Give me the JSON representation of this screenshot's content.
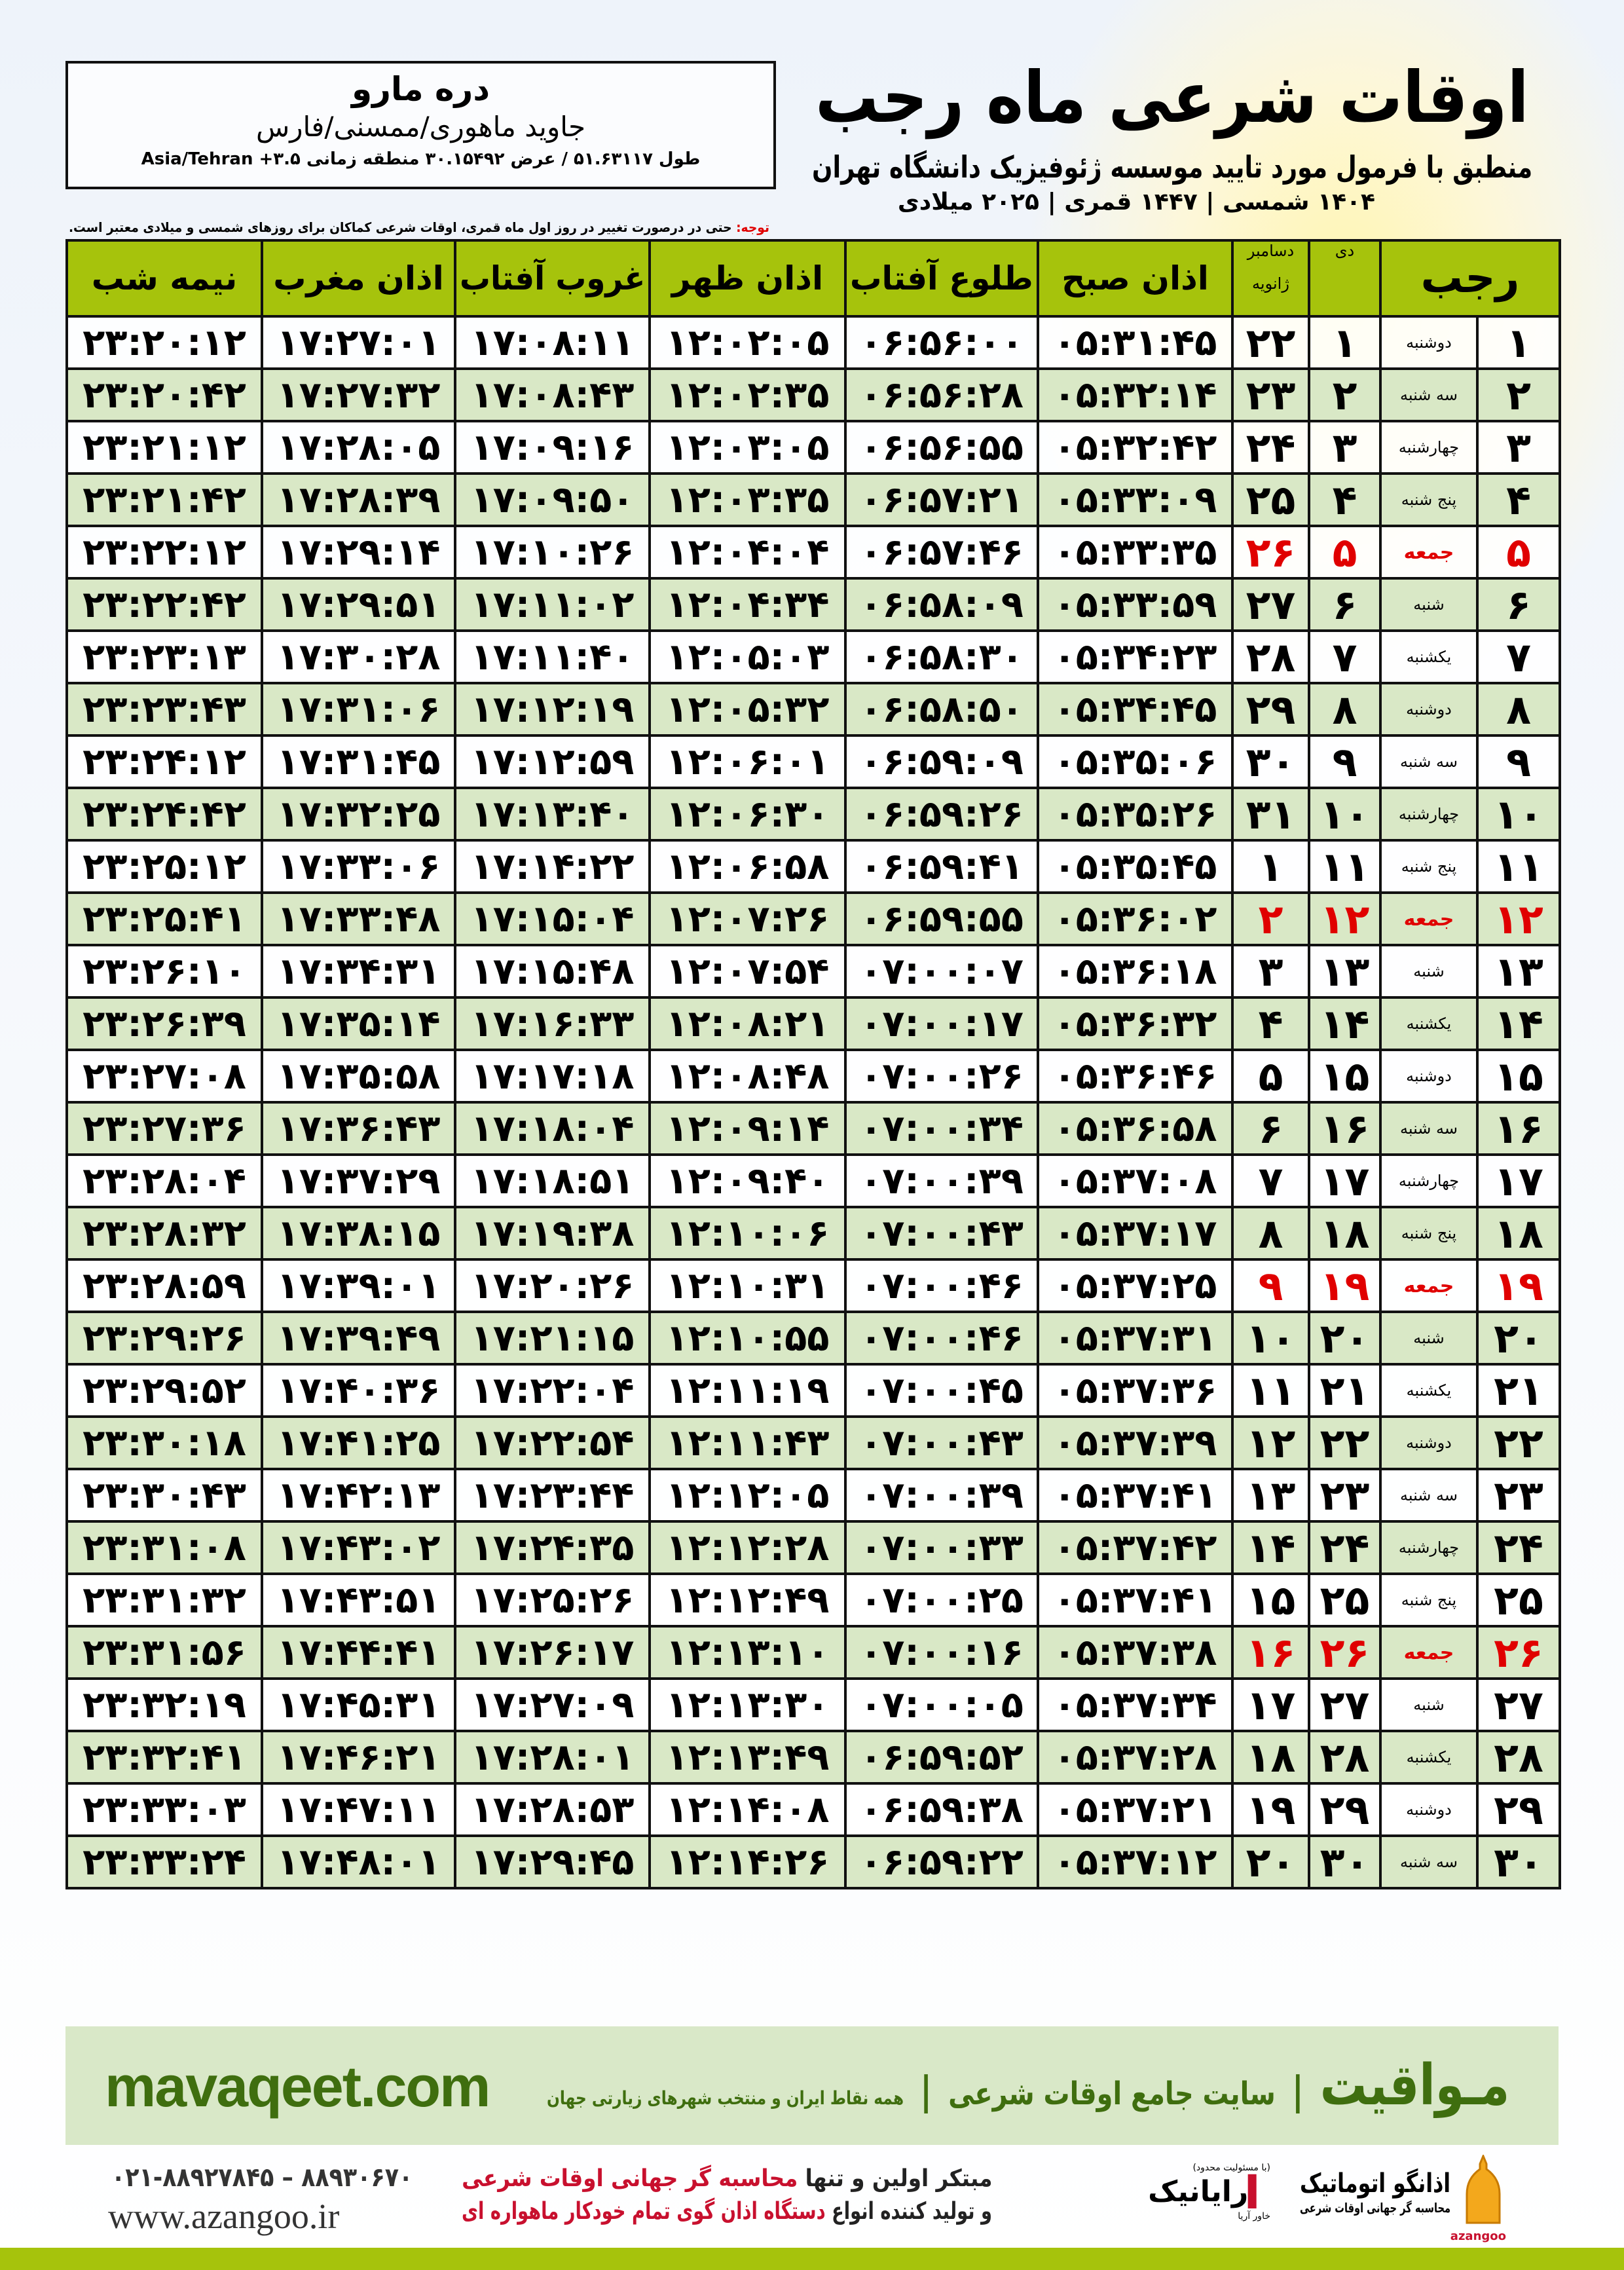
{
  "header": {
    "title": "اوقات شرعی ماه رجب",
    "subtitle": "منطبق با فرمول مورد تایید موسسه ژئوفیزیک دانشگاه تهران",
    "dates": "۱۴۰۴ شمسی | ۱۴۴۷ قمری | ۲۰۲۵ میلادی",
    "note_label": "توجه:",
    "note_text": " حتی در درصورت تغییر در روز اول ماه قمری، اوقات شرعی کماکان برای روزهای شمسی و میلادی معتبر است."
  },
  "location": {
    "city": "دره مارو",
    "province": "جاوید ماهوری/ممسنی/فارس",
    "coords": "طول ۵۱.۶۳۱۱۷ / عرض ۳۰.۱۵۴۹۲ منطقه زمانی ۳.۵+ Asia/Tehran"
  },
  "table": {
    "headers": {
      "month": "رجب",
      "dey": "دی",
      "greg_top": "دسامبر",
      "greg_bottom": "ژانویه",
      "fajr": "اذان صبح",
      "sunrise": "طلوع آفتاب",
      "dhuhr": "اذان ظهر",
      "sunset": "غروب آفتاب",
      "maghrib": "اذان مغرب",
      "midnight": "نیمه شب"
    },
    "holiday_color": "#e00000",
    "rows": [
      {
        "day": "۱",
        "weekday": "دوشنبه",
        "dey": "۱",
        "greg": "۲۲",
        "times": [
          "۰۵:۳۱:۴۵",
          "۰۶:۵۶:۰۰",
          "۱۲:۰۲:۰۵",
          "۱۷:۰۸:۱۱",
          "۱۷:۲۷:۰۱",
          "۲۳:۲۰:۱۲"
        ],
        "holiday": false
      },
      {
        "day": "۲",
        "weekday": "سه شنبه",
        "dey": "۲",
        "greg": "۲۳",
        "times": [
          "۰۵:۳۲:۱۴",
          "۰۶:۵۶:۲۸",
          "۱۲:۰۲:۳۵",
          "۱۷:۰۸:۴۳",
          "۱۷:۲۷:۳۲",
          "۲۳:۲۰:۴۲"
        ],
        "holiday": false
      },
      {
        "day": "۳",
        "weekday": "چهارشنبه",
        "dey": "۳",
        "greg": "۲۴",
        "times": [
          "۰۵:۳۲:۴۲",
          "۰۶:۵۶:۵۵",
          "۱۲:۰۳:۰۵",
          "۱۷:۰۹:۱۶",
          "۱۷:۲۸:۰۵",
          "۲۳:۲۱:۱۲"
        ],
        "holiday": false
      },
      {
        "day": "۴",
        "weekday": "پنج شنبه",
        "dey": "۴",
        "greg": "۲۵",
        "times": [
          "۰۵:۳۳:۰۹",
          "۰۶:۵۷:۲۱",
          "۱۲:۰۳:۳۵",
          "۱۷:۰۹:۵۰",
          "۱۷:۲۸:۳۹",
          "۲۳:۲۱:۴۲"
        ],
        "holiday": false
      },
      {
        "day": "۵",
        "weekday": "جمعه",
        "dey": "۵",
        "greg": "۲۶",
        "times": [
          "۰۵:۳۳:۳۵",
          "۰۶:۵۷:۴۶",
          "۱۲:۰۴:۰۴",
          "۱۷:۱۰:۲۶",
          "۱۷:۲۹:۱۴",
          "۲۳:۲۲:۱۲"
        ],
        "holiday": true
      },
      {
        "day": "۶",
        "weekday": "شنبه",
        "dey": "۶",
        "greg": "۲۷",
        "times": [
          "۰۵:۳۳:۵۹",
          "۰۶:۵۸:۰۹",
          "۱۲:۰۴:۳۴",
          "۱۷:۱۱:۰۲",
          "۱۷:۲۹:۵۱",
          "۲۳:۲۲:۴۲"
        ],
        "holiday": false
      },
      {
        "day": "۷",
        "weekday": "یکشنبه",
        "dey": "۷",
        "greg": "۲۸",
        "times": [
          "۰۵:۳۴:۲۳",
          "۰۶:۵۸:۳۰",
          "۱۲:۰۵:۰۳",
          "۱۷:۱۱:۴۰",
          "۱۷:۳۰:۲۸",
          "۲۳:۲۳:۱۳"
        ],
        "holiday": false
      },
      {
        "day": "۸",
        "weekday": "دوشنبه",
        "dey": "۸",
        "greg": "۲۹",
        "times": [
          "۰۵:۳۴:۴۵",
          "۰۶:۵۸:۵۰",
          "۱۲:۰۵:۳۲",
          "۱۷:۱۲:۱۹",
          "۱۷:۳۱:۰۶",
          "۲۳:۲۳:۴۳"
        ],
        "holiday": false
      },
      {
        "day": "۹",
        "weekday": "سه شنبه",
        "dey": "۹",
        "greg": "۳۰",
        "times": [
          "۰۵:۳۵:۰۶",
          "۰۶:۵۹:۰۹",
          "۱۲:۰۶:۰۱",
          "۱۷:۱۲:۵۹",
          "۱۷:۳۱:۴۵",
          "۲۳:۲۴:۱۲"
        ],
        "holiday": false
      },
      {
        "day": "۱۰",
        "weekday": "چهارشنبه",
        "dey": "۱۰",
        "greg": "۳۱",
        "times": [
          "۰۵:۳۵:۲۶",
          "۰۶:۵۹:۲۶",
          "۱۲:۰۶:۳۰",
          "۱۷:۱۳:۴۰",
          "۱۷:۳۲:۲۵",
          "۲۳:۲۴:۴۲"
        ],
        "holiday": false
      },
      {
        "day": "۱۱",
        "weekday": "پنج شنبه",
        "dey": "۱۱",
        "greg": "۱",
        "times": [
          "۰۵:۳۵:۴۵",
          "۰۶:۵۹:۴۱",
          "۱۲:۰۶:۵۸",
          "۱۷:۱۴:۲۲",
          "۱۷:۳۳:۰۶",
          "۲۳:۲۵:۱۲"
        ],
        "holiday": false
      },
      {
        "day": "۱۲",
        "weekday": "جمعه",
        "dey": "۱۲",
        "greg": "۲",
        "times": [
          "۰۵:۳۶:۰۲",
          "۰۶:۵۹:۵۵",
          "۱۲:۰۷:۲۶",
          "۱۷:۱۵:۰۴",
          "۱۷:۳۳:۴۸",
          "۲۳:۲۵:۴۱"
        ],
        "holiday": true
      },
      {
        "day": "۱۳",
        "weekday": "شنبه",
        "dey": "۱۳",
        "greg": "۳",
        "times": [
          "۰۵:۳۶:۱۸",
          "۰۷:۰۰:۰۷",
          "۱۲:۰۷:۵۴",
          "۱۷:۱۵:۴۸",
          "۱۷:۳۴:۳۱",
          "۲۳:۲۶:۱۰"
        ],
        "holiday": false
      },
      {
        "day": "۱۴",
        "weekday": "یکشنبه",
        "dey": "۱۴",
        "greg": "۴",
        "times": [
          "۰۵:۳۶:۳۲",
          "۰۷:۰۰:۱۷",
          "۱۲:۰۸:۲۱",
          "۱۷:۱۶:۳۳",
          "۱۷:۳۵:۱۴",
          "۲۳:۲۶:۳۹"
        ],
        "holiday": false
      },
      {
        "day": "۱۵",
        "weekday": "دوشنبه",
        "dey": "۱۵",
        "greg": "۵",
        "times": [
          "۰۵:۳۶:۴۶",
          "۰۷:۰۰:۲۶",
          "۱۲:۰۸:۴۸",
          "۱۷:۱۷:۱۸",
          "۱۷:۳۵:۵۸",
          "۲۳:۲۷:۰۸"
        ],
        "holiday": false
      },
      {
        "day": "۱۶",
        "weekday": "سه شنبه",
        "dey": "۱۶",
        "greg": "۶",
        "times": [
          "۰۵:۳۶:۵۸",
          "۰۷:۰۰:۳۴",
          "۱۲:۰۹:۱۴",
          "۱۷:۱۸:۰۴",
          "۱۷:۳۶:۴۳",
          "۲۳:۲۷:۳۶"
        ],
        "holiday": false
      },
      {
        "day": "۱۷",
        "weekday": "چهارشنبه",
        "dey": "۱۷",
        "greg": "۷",
        "times": [
          "۰۵:۳۷:۰۸",
          "۰۷:۰۰:۳۹",
          "۱۲:۰۹:۴۰",
          "۱۷:۱۸:۵۱",
          "۱۷:۳۷:۲۹",
          "۲۳:۲۸:۰۴"
        ],
        "holiday": false
      },
      {
        "day": "۱۸",
        "weekday": "پنج شنبه",
        "dey": "۱۸",
        "greg": "۸",
        "times": [
          "۰۵:۳۷:۱۷",
          "۰۷:۰۰:۴۳",
          "۱۲:۱۰:۰۶",
          "۱۷:۱۹:۳۸",
          "۱۷:۳۸:۱۵",
          "۲۳:۲۸:۳۲"
        ],
        "holiday": false
      },
      {
        "day": "۱۹",
        "weekday": "جمعه",
        "dey": "۱۹",
        "greg": "۹",
        "times": [
          "۰۵:۳۷:۲۵",
          "۰۷:۰۰:۴۶",
          "۱۲:۱۰:۳۱",
          "۱۷:۲۰:۲۶",
          "۱۷:۳۹:۰۱",
          "۲۳:۲۸:۵۹"
        ],
        "holiday": true
      },
      {
        "day": "۲۰",
        "weekday": "شنبه",
        "dey": "۲۰",
        "greg": "۱۰",
        "times": [
          "۰۵:۳۷:۳۱",
          "۰۷:۰۰:۴۶",
          "۱۲:۱۰:۵۵",
          "۱۷:۲۱:۱۵",
          "۱۷:۳۹:۴۹",
          "۲۳:۲۹:۲۶"
        ],
        "holiday": false
      },
      {
        "day": "۲۱",
        "weekday": "یکشنبه",
        "dey": "۲۱",
        "greg": "۱۱",
        "times": [
          "۰۵:۳۷:۳۶",
          "۰۷:۰۰:۴۵",
          "۱۲:۱۱:۱۹",
          "۱۷:۲۲:۰۴",
          "۱۷:۴۰:۳۶",
          "۲۳:۲۹:۵۲"
        ],
        "holiday": false
      },
      {
        "day": "۲۲",
        "weekday": "دوشنبه",
        "dey": "۲۲",
        "greg": "۱۲",
        "times": [
          "۰۵:۳۷:۳۹",
          "۰۷:۰۰:۴۳",
          "۱۲:۱۱:۴۳",
          "۱۷:۲۲:۵۴",
          "۱۷:۴۱:۲۵",
          "۲۳:۳۰:۱۸"
        ],
        "holiday": false
      },
      {
        "day": "۲۳",
        "weekday": "سه شنبه",
        "dey": "۲۳",
        "greg": "۱۳",
        "times": [
          "۰۵:۳۷:۴۱",
          "۰۷:۰۰:۳۹",
          "۱۲:۱۲:۰۵",
          "۱۷:۲۳:۴۴",
          "۱۷:۴۲:۱۳",
          "۲۳:۳۰:۴۳"
        ],
        "holiday": false
      },
      {
        "day": "۲۴",
        "weekday": "چهارشنبه",
        "dey": "۲۴",
        "greg": "۱۴",
        "times": [
          "۰۵:۳۷:۴۲",
          "۰۷:۰۰:۳۳",
          "۱۲:۱۲:۲۸",
          "۱۷:۲۴:۳۵",
          "۱۷:۴۳:۰۲",
          "۲۳:۳۱:۰۸"
        ],
        "holiday": false
      },
      {
        "day": "۲۵",
        "weekday": "پنج شنبه",
        "dey": "۲۵",
        "greg": "۱۵",
        "times": [
          "۰۵:۳۷:۴۱",
          "۰۷:۰۰:۲۵",
          "۱۲:۱۲:۴۹",
          "۱۷:۲۵:۲۶",
          "۱۷:۴۳:۵۱",
          "۲۳:۳۱:۳۲"
        ],
        "holiday": false
      },
      {
        "day": "۲۶",
        "weekday": "جمعه",
        "dey": "۲۶",
        "greg": "۱۶",
        "times": [
          "۰۵:۳۷:۳۸",
          "۰۷:۰۰:۱۶",
          "۱۲:۱۳:۱۰",
          "۱۷:۲۶:۱۷",
          "۱۷:۴۴:۴۱",
          "۲۳:۳۱:۵۶"
        ],
        "holiday": true
      },
      {
        "day": "۲۷",
        "weekday": "شنبه",
        "dey": "۲۷",
        "greg": "۱۷",
        "times": [
          "۰۵:۳۷:۳۴",
          "۰۷:۰۰:۰۵",
          "۱۲:۱۳:۳۰",
          "۱۷:۲۷:۰۹",
          "۱۷:۴۵:۳۱",
          "۲۳:۳۲:۱۹"
        ],
        "holiday": false
      },
      {
        "day": "۲۸",
        "weekday": "یکشنبه",
        "dey": "۲۸",
        "greg": "۱۸",
        "times": [
          "۰۵:۳۷:۲۸",
          "۰۶:۵۹:۵۲",
          "۱۲:۱۳:۴۹",
          "۱۷:۲۸:۰۱",
          "۱۷:۴۶:۲۱",
          "۲۳:۳۲:۴۱"
        ],
        "holiday": false
      },
      {
        "day": "۲۹",
        "weekday": "دوشنبه",
        "dey": "۲۹",
        "greg": "۱۹",
        "times": [
          "۰۵:۳۷:۲۱",
          "۰۶:۵۹:۳۸",
          "۱۲:۱۴:۰۸",
          "۱۷:۲۸:۵۳",
          "۱۷:۴۷:۱۱",
          "۲۳:۳۳:۰۳"
        ],
        "holiday": false
      },
      {
        "day": "۳۰",
        "weekday": "سه شنبه",
        "dey": "۳۰",
        "greg": "۲۰",
        "times": [
          "۰۵:۳۷:۱۲",
          "۰۶:۵۹:۲۲",
          "۱۲:۱۴:۲۶",
          "۱۷:۲۹:۴۵",
          "۱۷:۴۸:۰۱",
          "۲۳:۳۳:۲۴"
        ],
        "holiday": false
      }
    ]
  },
  "footer": {
    "brand": "مـواقیت",
    "separator": "|",
    "slogan": "سایت جامع اوقات شرعی",
    "slogan2": "همه نقاط ایران و منتخب شهرهای زیارتی جهان",
    "site": "mavaqeet.com",
    "phone": "۰۲۱-۸۸۹۲۷۸۴۵ – ۸۸۹۳۰۶۷۰",
    "www": "www.azangoo.ir",
    "promo_line1_a": "مبتکر اولین و تنها ",
    "promo_line1_b": "محاسبه گر جهانی اوقات شرعی",
    "promo_line2_a": "و تولید کننده انواع ",
    "promo_line2_b": "دستگاه اذان گوی تمام خودکار ماهواره ای",
    "rayanik_small": "(با مسئولیت محدود)",
    "rayanik": "رایانیک",
    "rayanik_sub": "خاور آریا",
    "azangoo_name": "اذانگو اتوماتیک",
    "azangoo_sub": "محاسبه گر جهانی اوقات شرعی",
    "azangoo_en": "azangoo",
    "brand_color": "#3f6e0f",
    "accent_color": "#a6c30c",
    "promo_color": "#c8102e"
  }
}
